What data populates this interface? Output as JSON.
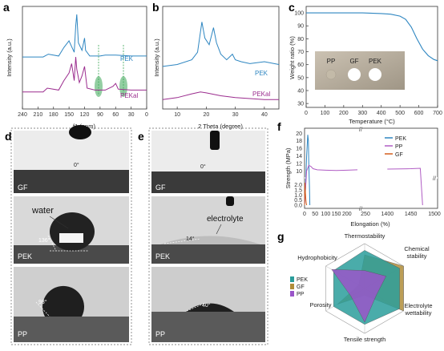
{
  "panels": {
    "a": {
      "label": "a",
      "xlabel": "f1 (ppm)",
      "ylabel": "Intensity (a.u.)",
      "xticks": [
        "240",
        "210",
        "180",
        "150",
        "120",
        "90",
        "60",
        "30",
        "0"
      ],
      "series_labels": [
        "PEK",
        "PEKal"
      ]
    },
    "b": {
      "label": "b",
      "xlabel": "2 Theta (degree)",
      "ylabel": "Intensity (a.u.)",
      "xticks": [
        "10",
        "20",
        "30",
        "40"
      ],
      "series_labels": [
        "PEK",
        "PEKal"
      ]
    },
    "c": {
      "label": "c",
      "xlabel": "Temperature (°C)",
      "ylabel": "Weight ratio (%)",
      "xticks": [
        "0",
        "100",
        "200",
        "300",
        "400",
        "500",
        "600",
        "700"
      ],
      "yticks": [
        "100",
        "90",
        "80",
        "70",
        "60",
        "50",
        "40",
        "30"
      ],
      "inset_labels": [
        "PP",
        "GF",
        "PEK"
      ]
    },
    "d": {
      "label": "d",
      "photos": [
        {
          "caption": "GF",
          "angle": "0°"
        },
        {
          "caption": "PEK",
          "angle": "136°",
          "note": "water"
        },
        {
          "caption": "PP",
          "angle": "98°"
        }
      ]
    },
    "e": {
      "label": "e",
      "photos": [
        {
          "caption": "GF",
          "angle": "0°"
        },
        {
          "caption": "PEK",
          "angle": "14°",
          "note": "electrolyte"
        },
        {
          "caption": "PP",
          "angle": "40°"
        }
      ]
    },
    "f": {
      "label": "f",
      "xlabel": "Elongation (%)",
      "ylabel": "Strength (MPa)",
      "xticks_left": [
        "0",
        "50",
        "100",
        "150",
        "200"
      ],
      "xticks_right": [
        "250",
        "1400",
        "1450",
        "1500"
      ],
      "yticks_top": [
        "20",
        "18",
        "16",
        "14",
        "12",
        "10"
      ],
      "yticks_bottom": [
        "0.0",
        "0.5",
        "1.0",
        "1.5",
        "2.0"
      ],
      "legend": [
        "PEK",
        "PP",
        "GF"
      ]
    },
    "g": {
      "label": "g",
      "axes": [
        "Thermostability",
        "Chemical stability",
        "Electrolyte wettability",
        "Tensile strength",
        "Porosity",
        "Hydrophobicity"
      ],
      "legend": [
        "PEK",
        "GF",
        "PP"
      ]
    }
  },
  "colors": {
    "PEK": "#2e86c1",
    "PEKal": "#9b2c8e",
    "PP": "#b05cc4",
    "GF": "#d45d1e",
    "green": "#3aa655"
  },
  "chart_data": [
    {
      "type": "line",
      "title": "",
      "xlabel": "f1 (ppm)",
      "ylabel": "Intensity (a.u.)",
      "xlim": [
        240,
        0
      ],
      "series": [
        {
          "name": "PEK",
          "x": [
            240,
            200,
            190,
            170,
            160,
            150,
            140,
            137,
            135,
            132,
            125,
            120,
            118,
            110,
            90,
            80,
            60,
            30,
            0
          ],
          "values": [
            0.55,
            0.55,
            0.58,
            0.56,
            0.65,
            0.72,
            0.6,
            0.88,
            1.0,
            0.7,
            0.62,
            0.75,
            0.62,
            0.56,
            0.56,
            0.57,
            0.57,
            0.56,
            0.56
          ]
        },
        {
          "name": "PEKal",
          "x": [
            240,
            200,
            192,
            170,
            160,
            150,
            145,
            140,
            137,
            135,
            130,
            125,
            120,
            115,
            100,
            80,
            65,
            60,
            55,
            30,
            0
          ],
          "values": [
            0.18,
            0.18,
            0.22,
            0.2,
            0.3,
            0.38,
            0.48,
            0.3,
            0.55,
            0.42,
            0.28,
            0.35,
            0.45,
            0.22,
            0.2,
            0.2,
            0.24,
            0.27,
            0.21,
            0.2,
            0.2
          ]
        }
      ]
    },
    {
      "type": "line",
      "title": "",
      "xlabel": "2 Theta (degree)",
      "ylabel": "Intensity (a.u.)",
      "xlim": [
        5,
        45
      ],
      "series": [
        {
          "name": "PEK",
          "x": [
            5,
            10,
            15,
            17,
            18.5,
            19.5,
            21,
            22.5,
            23.5,
            25,
            27,
            29,
            30,
            32,
            35,
            40,
            45
          ],
          "values": [
            0.45,
            0.47,
            0.52,
            0.6,
            0.92,
            0.75,
            0.68,
            0.86,
            0.7,
            0.58,
            0.52,
            0.58,
            0.52,
            0.5,
            0.48,
            0.5,
            0.47
          ]
        },
        {
          "name": "PEKal",
          "x": [
            5,
            10,
            15,
            18,
            20,
            25,
            30,
            35,
            40,
            45
          ],
          "values": [
            0.1,
            0.12,
            0.16,
            0.18,
            0.17,
            0.14,
            0.12,
            0.11,
            0.1,
            0.1
          ]
        }
      ]
    },
    {
      "type": "line",
      "title": "",
      "xlabel": "Temperature (°C)",
      "ylabel": "Weight ratio (%)",
      "xlim": [
        0,
        700
      ],
      "ylim": [
        30,
        105
      ],
      "series": [
        {
          "name": "PEK",
          "x": [
            0,
            100,
            200,
            300,
            400,
            450,
            500,
            530,
            560,
            590,
            620,
            650,
            680,
            700
          ],
          "values": [
            100,
            100,
            100,
            100,
            99.5,
            99,
            97.5,
            95,
            89,
            80,
            72,
            67,
            64,
            63
          ]
        }
      ]
    },
    {
      "type": "line",
      "title": "",
      "xlabel": "Elongation (%)",
      "ylabel": "Strength (MPa)",
      "series": [
        {
          "name": "PEK",
          "x": [
            0,
            5,
            10,
            15,
            18,
            20,
            23,
            25
          ],
          "values": [
            0,
            6,
            14,
            19.6,
            18,
            12,
            6,
            0
          ]
        },
        {
          "name": "PP",
          "x": [
            0,
            10,
            20,
            30,
            40,
            60,
            100,
            150,
            200,
            250,
            1400,
            1450,
            1470,
            1475
          ],
          "values": [
            0,
            10,
            11.5,
            11.2,
            10.6,
            10.3,
            10.2,
            10.1,
            10.2,
            10.3,
            10.5,
            10.6,
            10.7,
            0
          ]
        },
        {
          "name": "GF",
          "x": [
            0,
            1,
            2,
            3,
            4,
            5,
            6,
            8,
            10
          ],
          "values": [
            0,
            1.5,
            2.2,
            1.8,
            1.2,
            1.0,
            0.6,
            0.2,
            0
          ]
        }
      ]
    },
    {
      "type": "radar",
      "title": "",
      "categories": [
        "Thermostability",
        "Chemical stability",
        "Electrolyte wettability",
        "Tensile strength",
        "Porosity",
        "Hydrophobicity"
      ],
      "series": [
        {
          "name": "GF",
          "values": [
            0.75,
            1.0,
            1.0,
            0.15,
            0.7,
            0.15
          ]
        },
        {
          "name": "PEK",
          "values": [
            0.85,
            0.9,
            0.9,
            0.8,
            0.8,
            0.8
          ]
        },
        {
          "name": "PP",
          "values": [
            0.4,
            0.55,
            0.3,
            0.75,
            0.35,
            0.85
          ]
        }
      ]
    }
  ]
}
